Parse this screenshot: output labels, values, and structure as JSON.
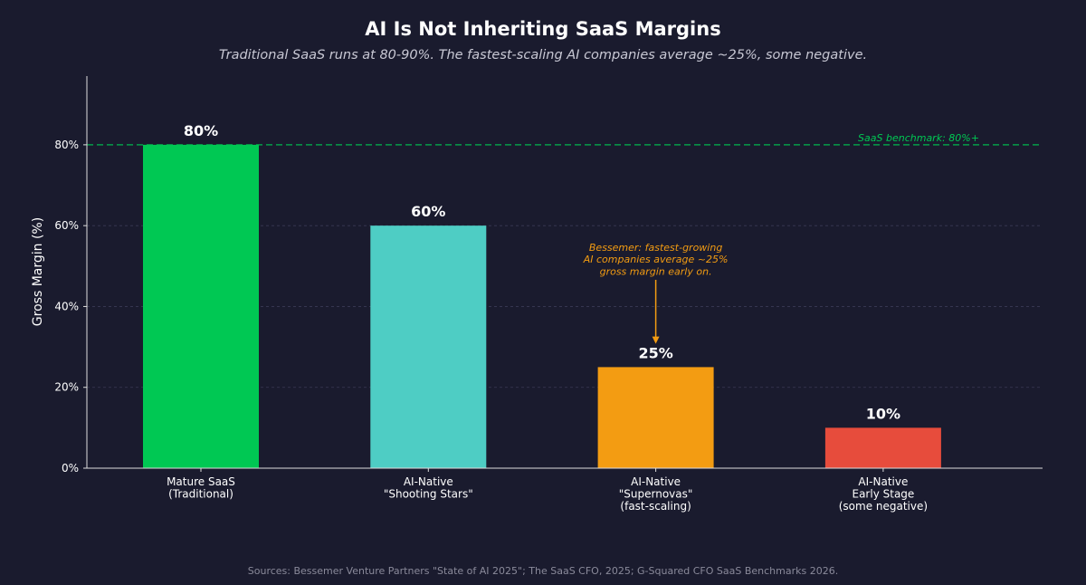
{
  "chart_data": {
    "type": "bar",
    "title": "AI Is Not Inheriting SaaS Margins",
    "subtitle": "Traditional SaaS runs at 80-90%. The fastest-scaling AI companies average ~25%, some negative.",
    "xlabel": "",
    "ylabel": "Gross Margin (%)",
    "ylim": [
      0,
      97
    ],
    "yticks": [
      0,
      20,
      40,
      60,
      80
    ],
    "ytick_labels": [
      "0%",
      "20%",
      "40%",
      "60%",
      "80%"
    ],
    "grid": true,
    "categories": [
      [
        "Mature SaaS",
        "(Traditional)"
      ],
      [
        "AI-Native",
        "\"Shooting Stars\""
      ],
      [
        "AI-Native",
        "\"Supernovas\"",
        "(fast-scaling)"
      ],
      [
        "AI-Native",
        "Early Stage",
        "(some negative)"
      ]
    ],
    "values": [
      80,
      60,
      25,
      10
    ],
    "data_labels": [
      "80%",
      "60%",
      "25%",
      "10%"
    ],
    "colors": [
      "#00c853",
      "#4ecdc4",
      "#f39c12",
      "#e74c3c"
    ],
    "reference_line": {
      "value": 80,
      "label": "SaaS benchmark: 80%+",
      "color": "#00c853",
      "style": "dashed"
    },
    "annotation": {
      "lines": [
        "Bessemer: fastest-growing",
        "AI companies average ~25%",
        "gross margin early on."
      ],
      "target_category": 2,
      "target_value": 31,
      "text_value": 55,
      "color": "#f39c12"
    },
    "source": "Sources: Bessemer Venture Partners \"State of AI 2025\"; The SaaS CFO, 2025; G-Squared CFO SaaS Benchmarks 2026."
  }
}
